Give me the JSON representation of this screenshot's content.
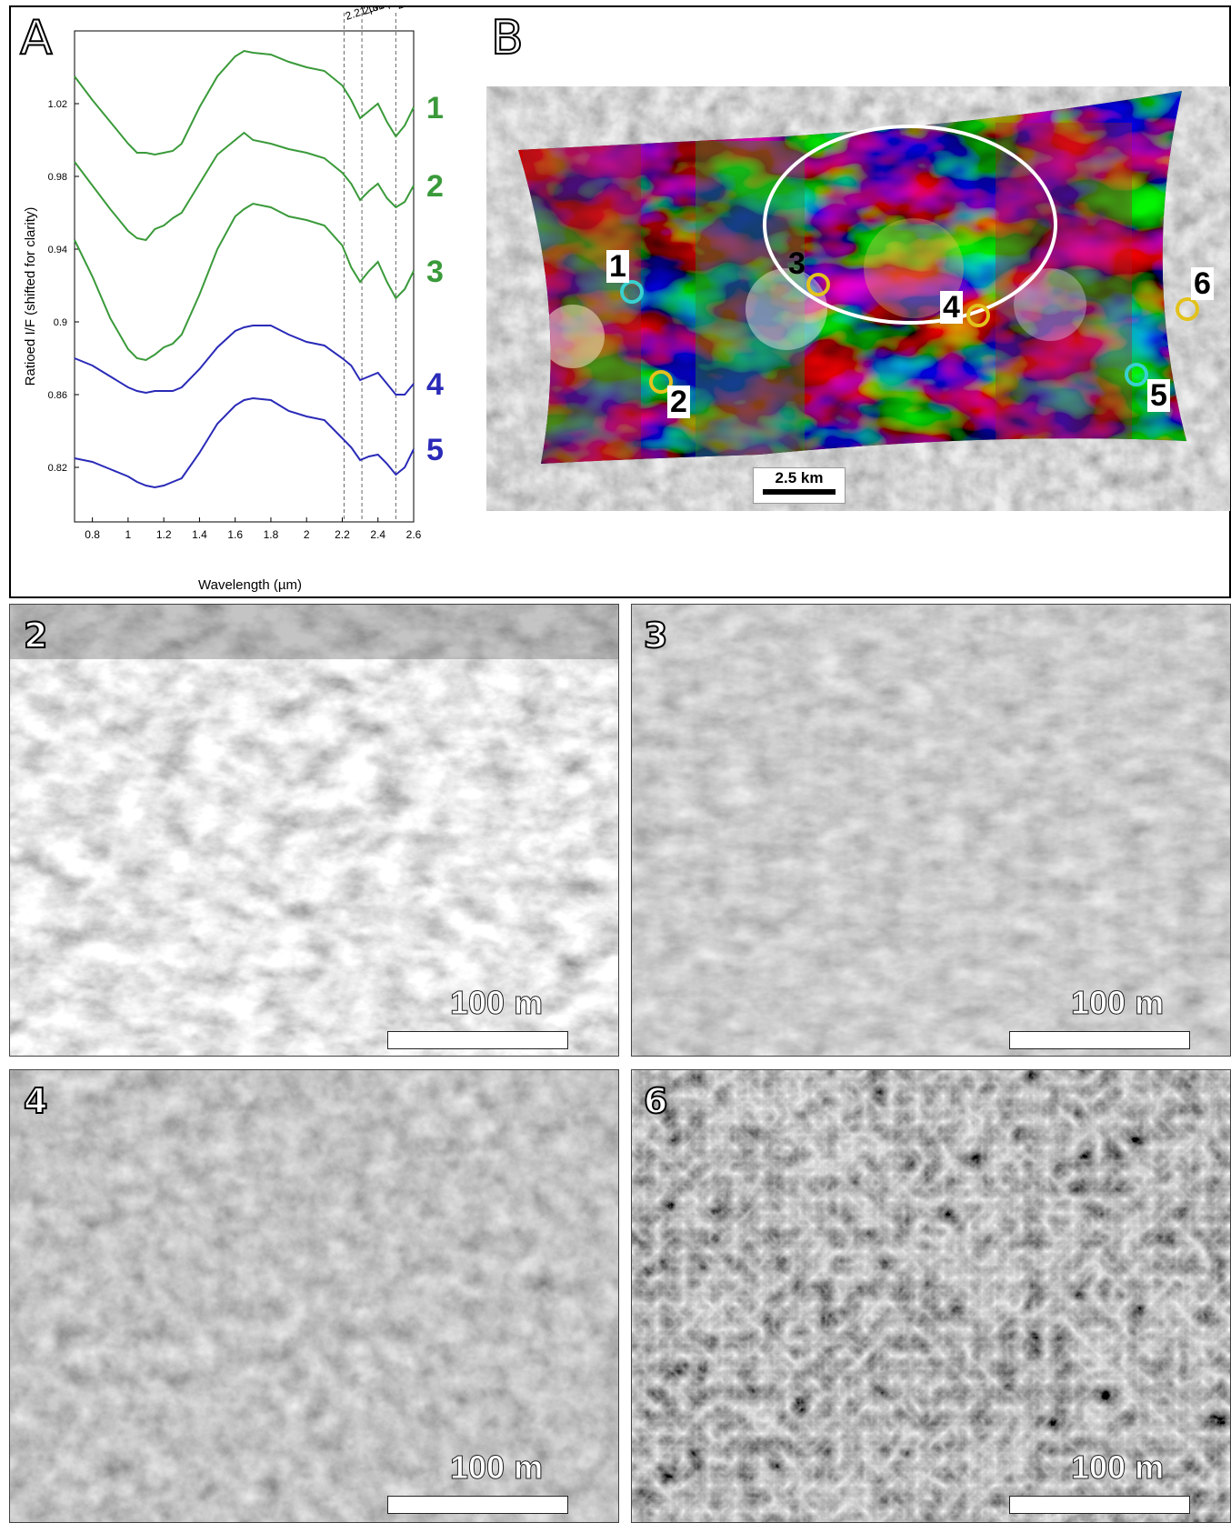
{
  "panel_a": {
    "letter": "A",
    "ylabel": "Ratioed I/F (shifted for clarity)",
    "xlabel": "Wavelength (µm)",
    "y_ticks": [
      "1.02",
      "0.98",
      "0.94",
      "0.9",
      "0.86",
      "0.82"
    ],
    "x_ticks": [
      "0.8",
      "1",
      "1.2",
      "1.4",
      "1.6",
      "1.8",
      "2",
      "2.2",
      "2.4",
      "2.6"
    ],
    "band_lines": [
      "2.21 µm",
      "2.31 µm",
      "2.50 µm"
    ],
    "series_labels": [
      "1",
      "2",
      "3",
      "4",
      "5"
    ],
    "colors": {
      "green": "#3a9a3a",
      "blue": "#2a2ab8"
    }
  },
  "chart_data": {
    "type": "line",
    "xlabel": "Wavelength (µm)",
    "ylabel": "Ratioed I/F (shifted for clarity)",
    "xlim": [
      0.7,
      2.6
    ],
    "ylim": [
      0.79,
      1.06
    ],
    "vlines": [
      2.21,
      2.31,
      2.5
    ],
    "series": [
      {
        "name": "1",
        "color": "#3a9a3a",
        "x": [
          0.7,
          0.8,
          0.9,
          1.0,
          1.05,
          1.1,
          1.15,
          1.2,
          1.25,
          1.3,
          1.4,
          1.5,
          1.6,
          1.65,
          1.7,
          1.8,
          1.9,
          2.0,
          2.1,
          2.2,
          2.25,
          2.3,
          2.35,
          2.4,
          2.45,
          2.5,
          2.55,
          2.6
        ],
        "y": [
          1.035,
          1.022,
          1.01,
          0.998,
          0.993,
          0.993,
          0.992,
          0.993,
          0.994,
          0.998,
          1.018,
          1.035,
          1.046,
          1.049,
          1.048,
          1.047,
          1.043,
          1.04,
          1.038,
          1.03,
          1.022,
          1.012,
          1.016,
          1.02,
          1.01,
          1.002,
          1.008,
          1.018
        ]
      },
      {
        "name": "2",
        "color": "#3a9a3a",
        "x": [
          0.7,
          0.8,
          0.9,
          1.0,
          1.05,
          1.1,
          1.15,
          1.2,
          1.25,
          1.3,
          1.4,
          1.5,
          1.6,
          1.65,
          1.7,
          1.8,
          1.9,
          2.0,
          2.1,
          2.2,
          2.25,
          2.3,
          2.35,
          2.4,
          2.45,
          2.5,
          2.55,
          2.6
        ],
        "y": [
          0.988,
          0.975,
          0.962,
          0.95,
          0.946,
          0.945,
          0.951,
          0.953,
          0.957,
          0.96,
          0.976,
          0.992,
          1.0,
          1.004,
          1.0,
          0.998,
          0.995,
          0.993,
          0.99,
          0.982,
          0.976,
          0.967,
          0.972,
          0.976,
          0.968,
          0.963,
          0.966,
          0.975
        ]
      },
      {
        "name": "3",
        "color": "#3a9a3a",
        "x": [
          0.7,
          0.8,
          0.9,
          1.0,
          1.05,
          1.1,
          1.15,
          1.2,
          1.25,
          1.3,
          1.4,
          1.5,
          1.6,
          1.65,
          1.7,
          1.8,
          1.9,
          2.0,
          2.1,
          2.2,
          2.25,
          2.3,
          2.35,
          2.4,
          2.45,
          2.5,
          2.55,
          2.6
        ],
        "y": [
          0.945,
          0.925,
          0.902,
          0.885,
          0.88,
          0.879,
          0.882,
          0.886,
          0.888,
          0.893,
          0.915,
          0.94,
          0.958,
          0.962,
          0.965,
          0.963,
          0.958,
          0.956,
          0.953,
          0.942,
          0.93,
          0.922,
          0.928,
          0.933,
          0.922,
          0.913,
          0.918,
          0.928
        ]
      },
      {
        "name": "4",
        "color": "#2a2ab8",
        "x": [
          0.7,
          0.8,
          0.9,
          1.0,
          1.05,
          1.1,
          1.15,
          1.2,
          1.25,
          1.3,
          1.4,
          1.5,
          1.6,
          1.65,
          1.7,
          1.8,
          1.9,
          2.0,
          2.1,
          2.2,
          2.25,
          2.3,
          2.35,
          2.4,
          2.45,
          2.5,
          2.55,
          2.6
        ],
        "y": [
          0.88,
          0.876,
          0.87,
          0.864,
          0.862,
          0.861,
          0.862,
          0.862,
          0.862,
          0.864,
          0.874,
          0.886,
          0.895,
          0.897,
          0.898,
          0.898,
          0.893,
          0.889,
          0.887,
          0.88,
          0.876,
          0.868,
          0.87,
          0.872,
          0.866,
          0.86,
          0.86,
          0.866
        ]
      },
      {
        "name": "5",
        "color": "#2a2ab8",
        "x": [
          0.7,
          0.8,
          0.9,
          1.0,
          1.05,
          1.1,
          1.15,
          1.2,
          1.25,
          1.3,
          1.4,
          1.5,
          1.6,
          1.65,
          1.7,
          1.8,
          1.9,
          2.0,
          2.1,
          2.2,
          2.25,
          2.3,
          2.35,
          2.4,
          2.45,
          2.5,
          2.55,
          2.6
        ],
        "y": [
          0.825,
          0.823,
          0.819,
          0.815,
          0.812,
          0.81,
          0.809,
          0.81,
          0.812,
          0.814,
          0.828,
          0.844,
          0.854,
          0.857,
          0.858,
          0.857,
          0.851,
          0.848,
          0.846,
          0.836,
          0.831,
          0.824,
          0.826,
          0.827,
          0.822,
          0.816,
          0.82,
          0.83
        ]
      }
    ]
  },
  "panel_b": {
    "letter": "B",
    "scale": "2.5 km",
    "sites": [
      {
        "label": "1",
        "color": "#38d0d0"
      },
      {
        "label": "2",
        "color": "#e2c21c"
      },
      {
        "label": "3",
        "color": "#e2c21c"
      },
      {
        "label": "4",
        "color": "#e2c21c"
      },
      {
        "label": "5",
        "color": "#38d0d0"
      },
      {
        "label": "6",
        "color": "#e2c21c"
      }
    ]
  },
  "photos": [
    {
      "number": "2",
      "scale": "100 m"
    },
    {
      "number": "3",
      "scale": "100 m"
    },
    {
      "number": "4",
      "scale": "100 m"
    },
    {
      "number": "6",
      "scale": "100 m"
    }
  ]
}
